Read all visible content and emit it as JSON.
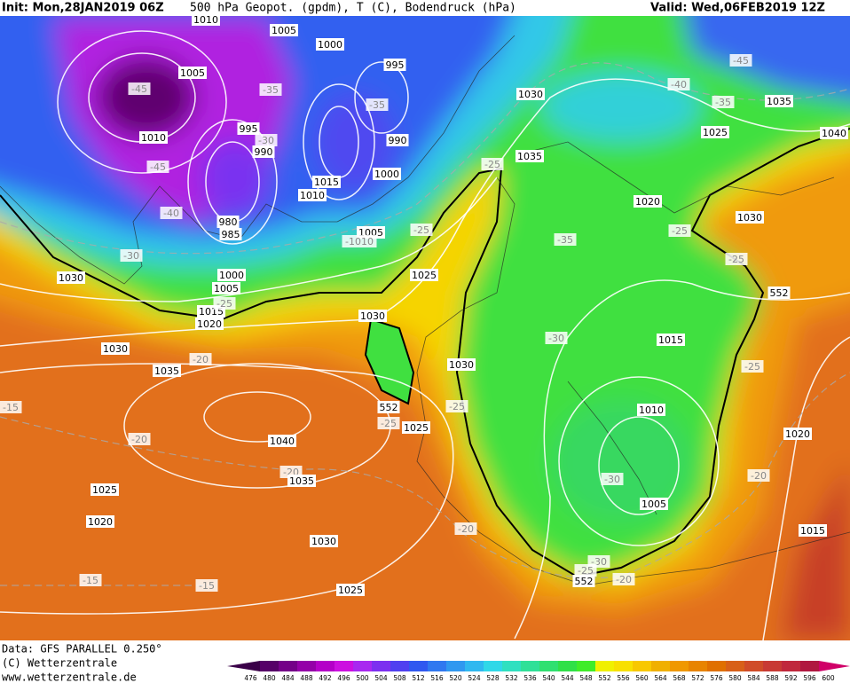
{
  "header": {
    "init": "Init: Mon,28JAN2019 06Z",
    "title": "500 hPa Geopot. (gpdm), T (C), Bodendruck (hPa)",
    "valid": "Valid: Wed,06FEB2019 12Z"
  },
  "footer": {
    "data": "Data: GFS PARALLEL 0.250°",
    "copyright": "(C) Wetterzentrale",
    "url": "www.wetterzentrale.de"
  },
  "colorbar": {
    "values": [
      476,
      480,
      484,
      488,
      492,
      496,
      500,
      504,
      508,
      512,
      516,
      520,
      524,
      528,
      532,
      536,
      540,
      544,
      548,
      552,
      556,
      560,
      564,
      568,
      572,
      576,
      580,
      584,
      588,
      592,
      596,
      600
    ],
    "colors": [
      "#3a0048",
      "#560068",
      "#740088",
      "#9400a8",
      "#b400c8",
      "#cc10e0",
      "#a828f0",
      "#7c30f0",
      "#5040f0",
      "#3058f0",
      "#3078f0",
      "#3098f0",
      "#30b8f0",
      "#30d8e8",
      "#30e0c0",
      "#30e098",
      "#30e070",
      "#30e048",
      "#40ec28",
      "#f0f000",
      "#f8e000",
      "#f8c800",
      "#f0b000",
      "#f09800",
      "#e88400",
      "#e07000",
      "#d86018",
      "#d04c28",
      "#c83a34",
      "#c0283c",
      "#b01840",
      "#d00068"
    ]
  },
  "map_labels": [
    "1010",
    "1005",
    "1000",
    "995",
    "1005",
    "-45",
    "-35",
    "-35",
    "1030",
    "-40",
    "-45",
    "-35",
    "1035",
    "1025",
    "1040",
    "995",
    "-30",
    "990",
    "990",
    "1010",
    "-45",
    "1000",
    "1015",
    "1010",
    "-25",
    "1035",
    "1020",
    "1030",
    "-40",
    "980",
    "985",
    "1005",
    "-1010",
    "-25",
    "-35",
    "-25",
    "-30",
    "1030",
    "1000",
    "1005",
    "1025",
    "-25",
    "552",
    "1015",
    "-25",
    "1020",
    "1030",
    "-30",
    "1015",
    "1030",
    "-20",
    "1035",
    "1030",
    "-25",
    "-15",
    "552",
    "-25",
    "1010",
    "-25",
    "1025",
    "1020",
    "-20",
    "1040",
    "-30",
    "-20",
    "-20",
    "1035",
    "1025",
    "1005",
    "1020",
    "-20",
    "1015",
    "1030",
    "-30",
    "-25",
    "552",
    "-20",
    "-15",
    "-15",
    "1025"
  ]
}
